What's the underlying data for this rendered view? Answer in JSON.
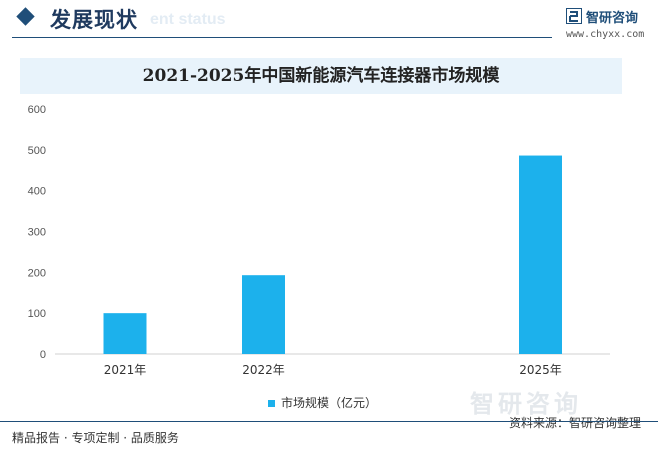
{
  "header": {
    "section_title": "发展现状",
    "section_subtitle": "ent status",
    "logo_text": "智研咨询",
    "website": "www.chyxx.com"
  },
  "chart_data": {
    "type": "bar",
    "title": "2021-2025年中国新能源汽车连接器市场规模",
    "categories": [
      "2021年",
      "2022年",
      "2025年"
    ],
    "x_positions": [
      2021,
      2022,
      2024
    ],
    "series": [
      {
        "name": "市场规模（亿元）",
        "values": [
          100,
          193,
          486
        ]
      }
    ],
    "ylim": [
      0,
      600
    ],
    "yticks": [
      "0",
      "100",
      "200",
      "300",
      "400",
      "500",
      "600"
    ],
    "grid": false,
    "legend_position": "bottom",
    "bar_color": "#1cb1ec"
  },
  "watermark": "智研咨询",
  "footer": {
    "left": "精品报告 · 专项定制 · 品质服务",
    "source": "资料来源：智研咨询整理"
  }
}
